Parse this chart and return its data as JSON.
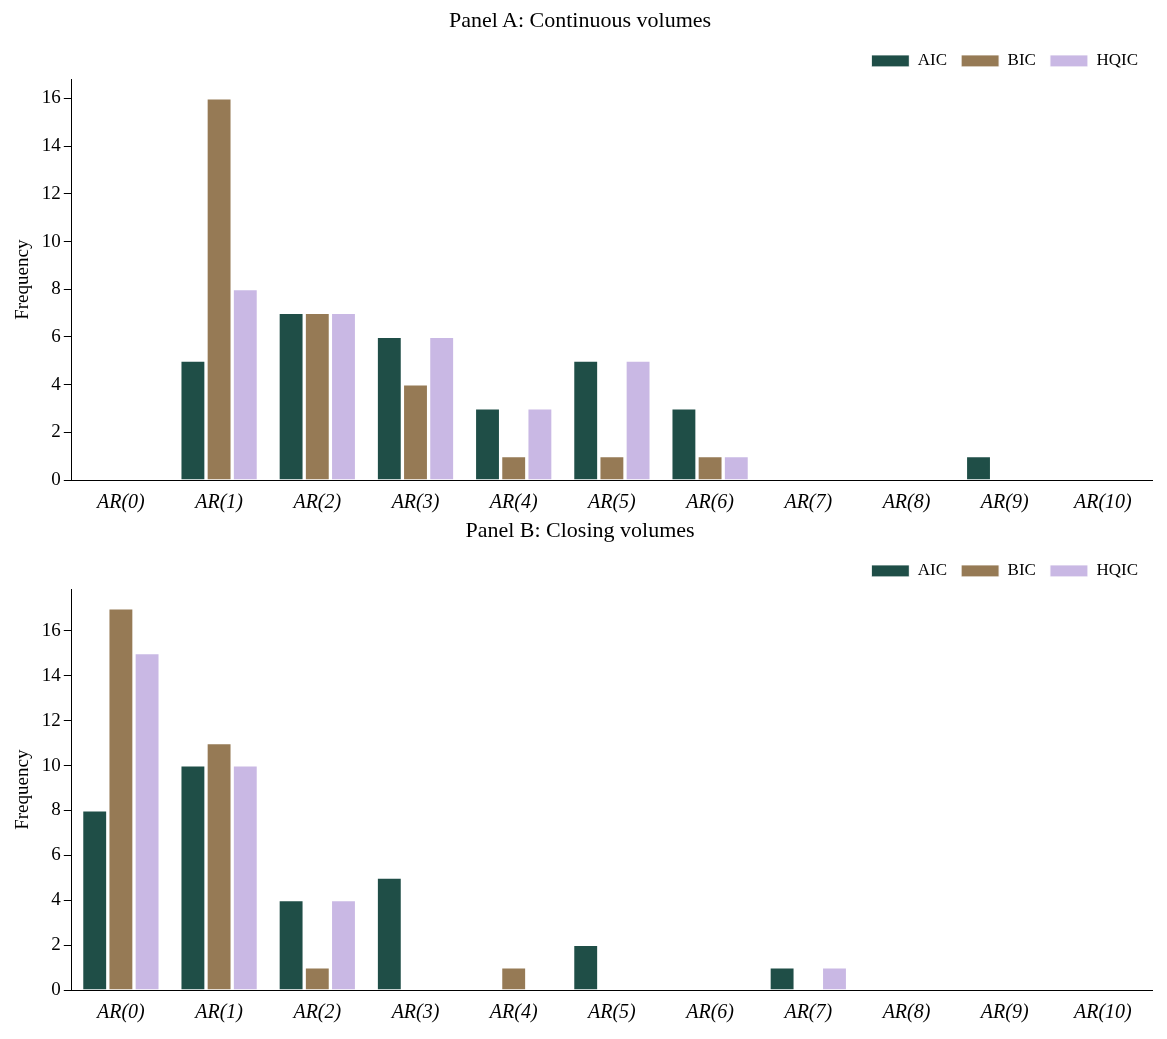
{
  "chart_data": [
    {
      "type": "bar",
      "title": "Panel A: Continuous volumes",
      "ylabel": "Frequency",
      "categories": [
        "AR(0)",
        "AR(1)",
        "AR(2)",
        "AR(3)",
        "AR(4)",
        "AR(5)",
        "AR(6)",
        "AR(7)",
        "AR(8)",
        "AR(9)",
        "AR(10)"
      ],
      "series": [
        {
          "name": "AIC",
          "color": "#1f4e47",
          "values": [
            0,
            5,
            7,
            6,
            3,
            5,
            3,
            0,
            0,
            1,
            0
          ]
        },
        {
          "name": "BIC",
          "color": "#967a55",
          "values": [
            0,
            16,
            7,
            4,
            1,
            1,
            1,
            0,
            0,
            0,
            0
          ]
        },
        {
          "name": "HQIC",
          "color": "#c9b8e4",
          "values": [
            0,
            8,
            7,
            6,
            3,
            5,
            1,
            0,
            0,
            0,
            0
          ]
        }
      ],
      "ylim": [
        0,
        16.8
      ],
      "yticks": [
        0,
        2,
        4,
        6,
        8,
        10,
        12,
        14,
        16
      ],
      "grid": false,
      "legend": "top right"
    },
    {
      "type": "bar",
      "title": "Panel B: Closing volumes",
      "ylabel": "Frequency",
      "categories": [
        "AR(0)",
        "AR(1)",
        "AR(2)",
        "AR(3)",
        "AR(4)",
        "AR(5)",
        "AR(6)",
        "AR(7)",
        "AR(8)",
        "AR(9)",
        "AR(10)"
      ],
      "series": [
        {
          "name": "AIC",
          "color": "#1f4e47",
          "values": [
            8,
            10,
            4,
            5,
            0,
            2,
            0,
            1,
            0,
            0,
            0
          ]
        },
        {
          "name": "BIC",
          "color": "#967a55",
          "values": [
            17,
            11,
            1,
            0,
            1,
            0,
            0,
            0,
            0,
            0,
            0
          ]
        },
        {
          "name": "HQIC",
          "color": "#c9b8e4",
          "values": [
            15,
            10,
            4,
            0,
            0,
            0,
            0,
            1,
            0,
            0,
            0
          ]
        }
      ],
      "ylim": [
        0,
        17.85
      ],
      "yticks": [
        0,
        2,
        4,
        6,
        8,
        10,
        12,
        14,
        16
      ],
      "grid": false,
      "legend": "top right"
    }
  ]
}
